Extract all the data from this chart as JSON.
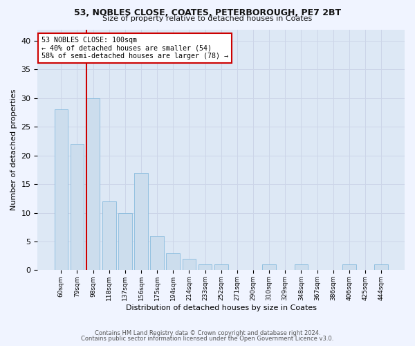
{
  "title1": "53, NOBLES CLOSE, COATES, PETERBOROUGH, PE7 2BT",
  "title2": "Size of property relative to detached houses in Coates",
  "xlabel": "Distribution of detached houses by size in Coates",
  "ylabel": "Number of detached properties",
  "categories": [
    "60sqm",
    "79sqm",
    "98sqm",
    "118sqm",
    "137sqm",
    "156sqm",
    "175sqm",
    "194sqm",
    "214sqm",
    "233sqm",
    "252sqm",
    "271sqm",
    "290sqm",
    "310sqm",
    "329sqm",
    "348sqm",
    "367sqm",
    "386sqm",
    "406sqm",
    "425sqm",
    "444sqm"
  ],
  "values": [
    28,
    22,
    30,
    12,
    10,
    17,
    6,
    3,
    2,
    1,
    1,
    0,
    0,
    1,
    0,
    1,
    0,
    0,
    1,
    0,
    1
  ],
  "bar_color": "#ccdded",
  "bar_edge_color": "#88bbdd",
  "vline_index": 2,
  "annotation_text": "53 NOBLES CLOSE: 100sqm\n← 40% of detached houses are smaller (54)\n58% of semi-detached houses are larger (78) →",
  "annotation_box_color": "#ffffff",
  "annotation_box_edge_color": "#cc0000",
  "vline_color": "#cc0000",
  "ylim": [
    0,
    42
  ],
  "yticks": [
    0,
    5,
    10,
    15,
    20,
    25,
    30,
    35,
    40
  ],
  "grid_color": "#ccd5e8",
  "bg_color": "#dde8f5",
  "fig_bg_color": "#f0f4ff",
  "footer1": "Contains HM Land Registry data © Crown copyright and database right 2024.",
  "footer2": "Contains public sector information licensed under the Open Government Licence v3.0."
}
